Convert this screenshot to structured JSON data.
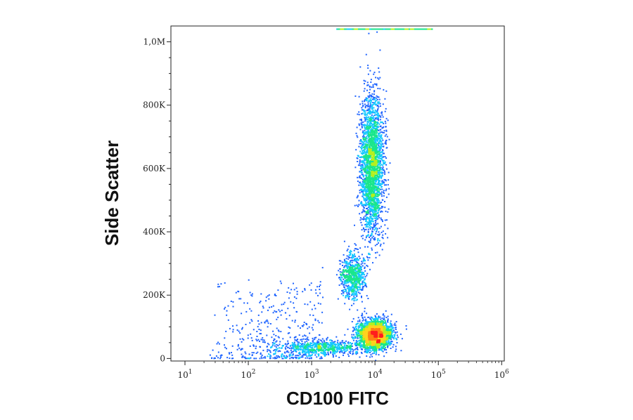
{
  "chart_data": {
    "type": "scatter",
    "subtype": "flow-cytometry-density-dot-plot",
    "xlabel": "CD100 FITC",
    "ylabel": "Side Scatter",
    "x_scale": "log",
    "xlim": [
      6,
      1100000
    ],
    "ylim": [
      -8000,
      1050000
    ],
    "x_ticks": [
      {
        "value": 10,
        "base": "10",
        "exp": "1"
      },
      {
        "value": 100,
        "base": "10",
        "exp": "2"
      },
      {
        "value": 1000,
        "base": "10",
        "exp": "3"
      },
      {
        "value": 10000,
        "base": "10",
        "exp": "4"
      },
      {
        "value": 100000,
        "base": "10",
        "exp": "5"
      },
      {
        "value": 1000000,
        "base": "10",
        "exp": "6"
      }
    ],
    "y_ticks": [
      {
        "value": 0,
        "label": "0"
      },
      {
        "value": 200000,
        "label": "200K"
      },
      {
        "value": 400000,
        "label": "400K"
      },
      {
        "value": 600000,
        "label": "600K"
      },
      {
        "value": 800000,
        "label": "800K"
      },
      {
        "value": 1000000,
        "label": "1,0M"
      }
    ],
    "grid": false,
    "legend": "none",
    "color_scale": [
      "#1010c8",
      "#1e64ff",
      "#14c8ff",
      "#19e68c",
      "#b4f01e",
      "#ffd21e",
      "#ff8214",
      "#ff1e1e"
    ],
    "populations": [
      {
        "name": "lymphocytes",
        "x_center": 10000,
        "y_center": 75000,
        "x_spread_log": 0.13,
        "y_spread": 22000,
        "density": "high"
      },
      {
        "name": "dim-low-scatter",
        "x_center": 1500,
        "y_center": 35000,
        "x_spread_log": 0.35,
        "y_spread": 12000,
        "density": "medium"
      },
      {
        "name": "monocytes",
        "x_center": 4500,
        "y_center": 260000,
        "x_spread_log": 0.1,
        "y_spread": 35000,
        "density": "medium"
      },
      {
        "name": "granulocytes",
        "x_center": 9000,
        "y_center": 610000,
        "x_spread_log": 0.09,
        "y_spread": 110000,
        "density": "high"
      },
      {
        "name": "background-low-events",
        "x_range": [
          20,
          1500
        ],
        "y_range": [
          0,
          250000
        ],
        "density": "sparse"
      },
      {
        "name": "saturated-events",
        "x_range": [
          2500,
          80000
        ],
        "y_value": 1040000,
        "density": "sparse"
      }
    ]
  }
}
